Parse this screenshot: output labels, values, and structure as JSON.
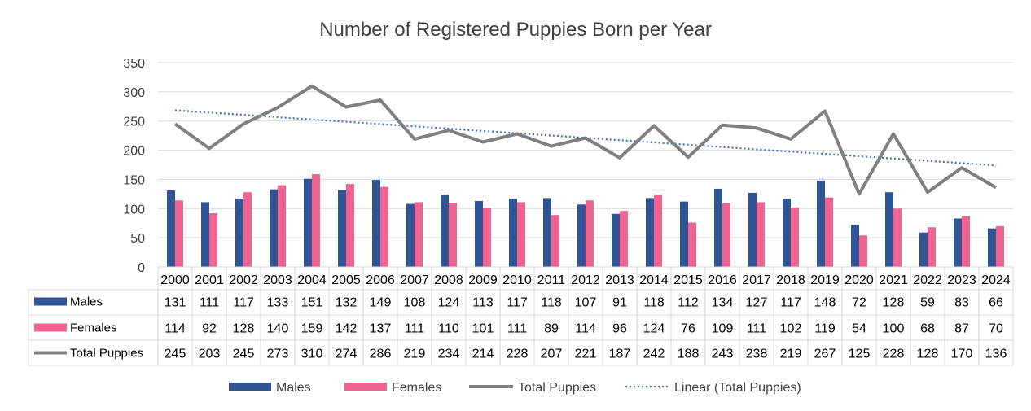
{
  "chart_data": {
    "type": "bar",
    "title": "Number of Registered Puppies Born per Year",
    "categories": [
      "2000",
      "2001",
      "2002",
      "2003",
      "2004",
      "2005",
      "2006",
      "2007",
      "2008",
      "2009",
      "2010",
      "2011",
      "2012",
      "2013",
      "2014",
      "2015",
      "2016",
      "2017",
      "2018",
      "2019",
      "2020",
      "2021",
      "2022",
      "2023",
      "2024"
    ],
    "series": [
      {
        "name": "Males",
        "type": "bar",
        "color": "#2F5597",
        "values": [
          131,
          111,
          117,
          133,
          151,
          132,
          149,
          108,
          124,
          113,
          117,
          118,
          107,
          91,
          118,
          112,
          134,
          127,
          117,
          148,
          72,
          128,
          59,
          83,
          66
        ]
      },
      {
        "name": "Females",
        "type": "bar",
        "color": "#F06292",
        "values": [
          114,
          92,
          128,
          140,
          159,
          142,
          137,
          111,
          110,
          101,
          111,
          89,
          114,
          96,
          124,
          76,
          109,
          111,
          102,
          119,
          54,
          100,
          68,
          87,
          70
        ]
      },
      {
        "name": "Total Puppies",
        "type": "line",
        "color": "#808080",
        "values": [
          245,
          203,
          245,
          273,
          310,
          274,
          286,
          219,
          234,
          214,
          228,
          207,
          221,
          187,
          242,
          188,
          243,
          238,
          219,
          267,
          125,
          228,
          128,
          170,
          136
        ]
      }
    ],
    "trendline": {
      "name": "Linear (Total Puppies)",
      "type": "linear",
      "style": "dotted",
      "color": "#4472C4",
      "of_series": "Total Puppies"
    },
    "ylim": [
      0,
      350
    ],
    "yticks": [
      0,
      50,
      100,
      150,
      200,
      250,
      300,
      350
    ],
    "grid": true,
    "data_table": true,
    "legend_position": "bottom"
  }
}
